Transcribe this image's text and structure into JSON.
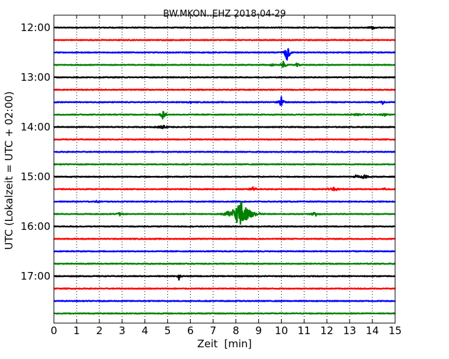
{
  "chart_data": {
    "type": "line",
    "title": "BW.MKON..EHZ 2018-04-29",
    "xlabel": "Zeit  [min]",
    "ylabel": "UTC (Lokalzeit = UTC + 02:00)",
    "xlim": [
      0,
      15
    ],
    "x_ticks": [
      0,
      1,
      2,
      3,
      4,
      5,
      6,
      7,
      8,
      9,
      10,
      11,
      12,
      13,
      14,
      15
    ],
    "y_ticks": [
      {
        "row": 0,
        "label": "12:00"
      },
      {
        "row": 4,
        "label": "13:00"
      },
      {
        "row": 8,
        "label": "14:00"
      },
      {
        "row": 12,
        "label": "15:00"
      },
      {
        "row": 16,
        "label": "16:00"
      },
      {
        "row": 20,
        "label": "17:00"
      }
    ],
    "grid": "x-dotted",
    "color_cycle": [
      "#000000",
      "#ff0000",
      "#0000ff",
      "#008000"
    ],
    "trace_rows": 24,
    "trace_interval_minutes": 15,
    "events": [
      {
        "row": 0,
        "t": 14.0,
        "amp": 0.12,
        "dur": 0.4
      },
      {
        "row": 2,
        "t": 10.25,
        "amp": 0.95,
        "dur": 0.25
      },
      {
        "row": 3,
        "t": 10.1,
        "amp": 0.35,
        "dur": 0.25
      },
      {
        "row": 3,
        "t": 9.6,
        "amp": 0.15,
        "dur": 0.2
      },
      {
        "row": 3,
        "t": 10.7,
        "amp": 0.2,
        "dur": 0.2
      },
      {
        "row": 6,
        "t": 10.0,
        "amp": 0.45,
        "dur": 0.25
      },
      {
        "row": 6,
        "t": 6.0,
        "amp": 0.1,
        "dur": 0.2
      },
      {
        "row": 6,
        "t": 14.45,
        "amp": 0.18,
        "dur": 0.2
      },
      {
        "row": 7,
        "t": 4.8,
        "amp": 0.45,
        "dur": 0.25
      },
      {
        "row": 7,
        "t": 13.3,
        "amp": 0.15,
        "dur": 0.6
      },
      {
        "row": 7,
        "t": 14.5,
        "amp": 0.2,
        "dur": 0.3
      },
      {
        "row": 8,
        "t": 4.75,
        "amp": 0.16,
        "dur": 0.5
      },
      {
        "row": 12,
        "t": 13.3,
        "amp": 0.18,
        "dur": 0.25
      },
      {
        "row": 12,
        "t": 13.65,
        "amp": 0.2,
        "dur": 0.35
      },
      {
        "row": 13,
        "t": 8.75,
        "amp": 0.25,
        "dur": 0.35
      },
      {
        "row": 13,
        "t": 12.3,
        "amp": 0.15,
        "dur": 0.6
      },
      {
        "row": 13,
        "t": 14.5,
        "amp": 0.12,
        "dur": 0.3
      },
      {
        "row": 14,
        "t": 1.9,
        "amp": 0.12,
        "dur": 0.25
      },
      {
        "row": 15,
        "t": 8.2,
        "amp": 1.2,
        "dur": 0.9
      },
      {
        "row": 15,
        "t": 2.9,
        "amp": 0.12,
        "dur": 0.4
      },
      {
        "row": 15,
        "t": 11.5,
        "amp": 0.3,
        "dur": 0.25
      },
      {
        "row": 15,
        "t": 9.0,
        "amp": 0.15,
        "dur": 0.3
      },
      {
        "row": 20,
        "t": 5.5,
        "amp": 0.28,
        "dur": 0.2
      }
    ]
  }
}
